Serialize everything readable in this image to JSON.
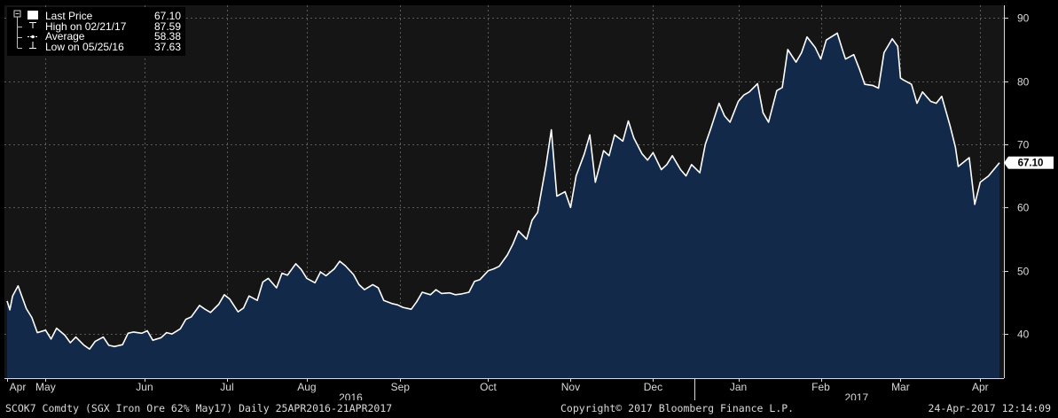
{
  "chart_data": {
    "type": "area",
    "x_range": [
      "2016-04-25",
      "2017-04-21"
    ],
    "ylim": [
      33,
      92
    ],
    "y_ticks": [
      40,
      50,
      60,
      70,
      80,
      90
    ],
    "grid": true,
    "legend_placement": "top-left",
    "colors": {
      "background": "#151515",
      "area_fill": "#12294a",
      "line": "#ffffff",
      "grid": "#5a5a5a"
    },
    "legend": [
      {
        "label": "Last Price",
        "value": "67.10",
        "icon": "filled-square-icon"
      },
      {
        "label": "High on 02/21/17",
        "value": "87.59",
        "icon": "high-marker-icon"
      },
      {
        "label": "Average",
        "value": "58.38",
        "icon": "average-marker-icon"
      },
      {
        "label": "Low on 05/25/16",
        "value": "37.63",
        "icon": "low-marker-icon"
      }
    ],
    "last_value_label": "67.10",
    "x_month_ticks": [
      {
        "label": "Apr",
        "date": "2016-04-25"
      },
      {
        "label": "May",
        "date": "2016-05-09"
      },
      {
        "label": "Jun",
        "date": "2016-06-14"
      },
      {
        "label": "Jul",
        "date": "2016-07-14"
      },
      {
        "label": "Aug",
        "date": "2016-08-12"
      },
      {
        "label": "Sep",
        "date": "2016-09-15"
      },
      {
        "label": "Oct",
        "date": "2016-10-17"
      },
      {
        "label": "Nov",
        "date": "2016-11-16"
      },
      {
        "label": "Dec",
        "date": "2016-12-16"
      },
      {
        "label": "Jan",
        "date": "2017-01-16"
      },
      {
        "label": "Feb",
        "date": "2017-02-15"
      },
      {
        "label": "Mar",
        "date": "2017-03-16"
      },
      {
        "label": "Apr",
        "date": "2017-04-14"
      }
    ],
    "x_year_labels": [
      {
        "label": "2016",
        "date": "2016-08-28"
      },
      {
        "label": "2017",
        "date": "2017-02-28"
      }
    ],
    "year_separator_date": "2016-12-31",
    "series": [
      {
        "values": [
          [
            "2016-04-25",
            45.2
          ],
          [
            "2016-04-26",
            43.8
          ],
          [
            "2016-04-27",
            46.0
          ],
          [
            "2016-04-29",
            47.6
          ],
          [
            "2016-05-02",
            44.0
          ],
          [
            "2016-05-04",
            42.6
          ],
          [
            "2016-05-06",
            40.2
          ],
          [
            "2016-05-09",
            40.6
          ],
          [
            "2016-05-11",
            39.2
          ],
          [
            "2016-05-13",
            40.9
          ],
          [
            "2016-05-16",
            39.8
          ],
          [
            "2016-05-18",
            38.6
          ],
          [
            "2016-05-20",
            39.5
          ],
          [
            "2016-05-23",
            38.2
          ],
          [
            "2016-05-25",
            37.6
          ],
          [
            "2016-05-27",
            38.8
          ],
          [
            "2016-05-30",
            39.5
          ],
          [
            "2016-06-01",
            38.2
          ],
          [
            "2016-06-03",
            38.0
          ],
          [
            "2016-06-06",
            38.3
          ],
          [
            "2016-06-08",
            40.1
          ],
          [
            "2016-06-10",
            40.3
          ],
          [
            "2016-06-13",
            40.1
          ],
          [
            "2016-06-15",
            40.5
          ],
          [
            "2016-06-17",
            39.0
          ],
          [
            "2016-06-20",
            39.4
          ],
          [
            "2016-06-22",
            40.2
          ],
          [
            "2016-06-24",
            40.0
          ],
          [
            "2016-06-27",
            40.8
          ],
          [
            "2016-06-29",
            42.3
          ],
          [
            "2016-07-01",
            42.7
          ],
          [
            "2016-07-04",
            44.5
          ],
          [
            "2016-07-06",
            43.9
          ],
          [
            "2016-07-08",
            43.4
          ],
          [
            "2016-07-11",
            44.7
          ],
          [
            "2016-07-13",
            46.2
          ],
          [
            "2016-07-15",
            45.5
          ],
          [
            "2016-07-18",
            43.5
          ],
          [
            "2016-07-20",
            44.1
          ],
          [
            "2016-07-22",
            46.0
          ],
          [
            "2016-07-25",
            45.3
          ],
          [
            "2016-07-27",
            48.2
          ],
          [
            "2016-07-29",
            48.8
          ],
          [
            "2016-08-01",
            47.3
          ],
          [
            "2016-08-03",
            49.6
          ],
          [
            "2016-08-05",
            49.3
          ],
          [
            "2016-08-08",
            51.1
          ],
          [
            "2016-08-10",
            50.2
          ],
          [
            "2016-08-12",
            48.8
          ],
          [
            "2016-08-15",
            48.1
          ],
          [
            "2016-08-17",
            49.8
          ],
          [
            "2016-08-19",
            49.2
          ],
          [
            "2016-08-22",
            50.3
          ],
          [
            "2016-08-24",
            51.5
          ],
          [
            "2016-08-26",
            50.8
          ],
          [
            "2016-08-29",
            49.4
          ],
          [
            "2016-08-31",
            47.8
          ],
          [
            "2016-09-02",
            47.0
          ],
          [
            "2016-09-05",
            47.8
          ],
          [
            "2016-09-07",
            47.3
          ],
          [
            "2016-09-09",
            45.3
          ],
          [
            "2016-09-12",
            44.8
          ],
          [
            "2016-09-14",
            44.6
          ],
          [
            "2016-09-16",
            44.2
          ],
          [
            "2016-09-19",
            43.9
          ],
          [
            "2016-09-21",
            45.1
          ],
          [
            "2016-09-23",
            46.6
          ],
          [
            "2016-09-26",
            46.2
          ],
          [
            "2016-09-28",
            47.0
          ],
          [
            "2016-09-30",
            46.4
          ],
          [
            "2016-10-03",
            46.5
          ],
          [
            "2016-10-05",
            46.2
          ],
          [
            "2016-10-07",
            46.3
          ],
          [
            "2016-10-10",
            46.6
          ],
          [
            "2016-10-12",
            48.3
          ],
          [
            "2016-10-14",
            48.6
          ],
          [
            "2016-10-17",
            50.0
          ],
          [
            "2016-10-19",
            50.3
          ],
          [
            "2016-10-21",
            50.7
          ],
          [
            "2016-10-24",
            52.5
          ],
          [
            "2016-10-26",
            54.2
          ],
          [
            "2016-10-28",
            56.3
          ],
          [
            "2016-10-31",
            55.0
          ],
          [
            "2016-11-02",
            58.0
          ],
          [
            "2016-11-04",
            59.2
          ],
          [
            "2016-11-07",
            66.5
          ],
          [
            "2016-11-09",
            72.3
          ],
          [
            "2016-11-11",
            61.8
          ],
          [
            "2016-11-14",
            62.5
          ],
          [
            "2016-11-16",
            60.0
          ],
          [
            "2016-11-18",
            65.0
          ],
          [
            "2016-11-21",
            68.5
          ],
          [
            "2016-11-23",
            71.5
          ],
          [
            "2016-11-25",
            64.0
          ],
          [
            "2016-11-28",
            69.0
          ],
          [
            "2016-11-30",
            68.2
          ],
          [
            "2016-12-02",
            71.5
          ],
          [
            "2016-12-05",
            70.5
          ],
          [
            "2016-12-07",
            73.7
          ],
          [
            "2016-12-09",
            71.0
          ],
          [
            "2016-12-12",
            68.5
          ],
          [
            "2016-12-14",
            67.5
          ],
          [
            "2016-12-16",
            68.7
          ],
          [
            "2016-12-19",
            66.0
          ],
          [
            "2016-12-21",
            66.8
          ],
          [
            "2016-12-23",
            68.2
          ],
          [
            "2016-12-26",
            66.0
          ],
          [
            "2016-12-28",
            65.0
          ],
          [
            "2016-12-30",
            66.8
          ],
          [
            "2017-01-02",
            65.5
          ],
          [
            "2017-01-04",
            70.0
          ],
          [
            "2017-01-06",
            72.5
          ],
          [
            "2017-01-09",
            76.5
          ],
          [
            "2017-01-11",
            74.5
          ],
          [
            "2017-01-13",
            73.5
          ],
          [
            "2017-01-16",
            76.8
          ],
          [
            "2017-01-18",
            77.8
          ],
          [
            "2017-01-20",
            78.3
          ],
          [
            "2017-01-23",
            79.6
          ],
          [
            "2017-01-25",
            75.0
          ],
          [
            "2017-01-27",
            73.5
          ],
          [
            "2017-01-30",
            78.5
          ],
          [
            "2017-02-01",
            79.0
          ],
          [
            "2017-02-03",
            85.0
          ],
          [
            "2017-02-06",
            83.0
          ],
          [
            "2017-02-08",
            84.5
          ],
          [
            "2017-02-10",
            87.0
          ],
          [
            "2017-02-13",
            85.3
          ],
          [
            "2017-02-15",
            83.5
          ],
          [
            "2017-02-17",
            86.5
          ],
          [
            "2017-02-21",
            87.6
          ],
          [
            "2017-02-23",
            84.8
          ],
          [
            "2017-02-24",
            83.5
          ],
          [
            "2017-02-27",
            84.2
          ],
          [
            "2017-03-01",
            82.0
          ],
          [
            "2017-03-03",
            79.5
          ],
          [
            "2017-03-06",
            79.3
          ],
          [
            "2017-03-08",
            78.9
          ],
          [
            "2017-03-10",
            84.5
          ],
          [
            "2017-03-13",
            86.7
          ],
          [
            "2017-03-15",
            85.5
          ],
          [
            "2017-03-16",
            80.5
          ],
          [
            "2017-03-17",
            80.2
          ],
          [
            "2017-03-20",
            79.5
          ],
          [
            "2017-03-22",
            76.5
          ],
          [
            "2017-03-24",
            78.3
          ],
          [
            "2017-03-27",
            76.8
          ],
          [
            "2017-03-29",
            76.5
          ],
          [
            "2017-03-31",
            77.6
          ],
          [
            "2017-04-03",
            73.0
          ],
          [
            "2017-04-05",
            69.5
          ],
          [
            "2017-04-06",
            66.5
          ],
          [
            "2017-04-10",
            67.9
          ],
          [
            "2017-04-12",
            60.5
          ],
          [
            "2017-04-14",
            64.0
          ],
          [
            "2017-04-17",
            65.0
          ],
          [
            "2017-04-21",
            67.1
          ]
        ]
      }
    ]
  },
  "footer": {
    "ticker_description": "SCOK7 Comdty (SGX Iron Ore 62%  May17)  Daily 25APR2016-21APR2017",
    "copyright": "Copyright© 2017 Bloomberg Finance L.P.",
    "timestamp": "24-Apr-2017 12:14:09"
  }
}
